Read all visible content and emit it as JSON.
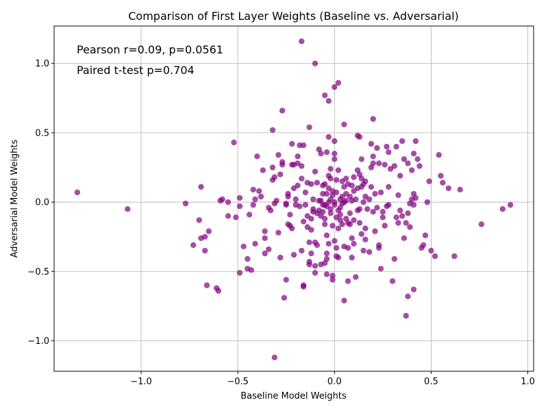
{
  "chart_data": {
    "type": "scatter",
    "title": "Comparison of First Layer Weights (Baseline vs. Adversarial)",
    "xlabel": "Baseline Model Weights",
    "ylabel": "Adversarial Model Weights",
    "xlim": [
      -1.45,
      1.03
    ],
    "ylim": [
      -1.22,
      1.27
    ],
    "x_ticks": [
      -1.0,
      -0.5,
      0.0,
      0.5,
      1.0
    ],
    "x_tick_labels": [
      "−1.0",
      "−0.5",
      "0.0",
      "0.5",
      "1.0"
    ],
    "y_ticks": [
      -1.0,
      -0.5,
      0.0,
      0.5,
      1.0
    ],
    "y_tick_labels": [
      "−1.0",
      "−0.5",
      "0.0",
      "0.5",
      "1.0"
    ],
    "grid": true,
    "marker_color": "#800080",
    "marker_alpha": 0.7,
    "annotations": [
      "Pearson r=0.09, p=0.0561",
      "Paired t-test p=0.704"
    ],
    "series": [
      {
        "points": [
          [
            -1.33,
            0.07
          ],
          [
            -1.07,
            -0.05
          ],
          [
            -0.77,
            -0.01
          ],
          [
            -0.73,
            -0.31
          ],
          [
            -0.7,
            -0.13
          ],
          [
            -0.69,
            0.11
          ],
          [
            -0.69,
            -0.26
          ],
          [
            -0.67,
            -0.25
          ],
          [
            -0.67,
            -0.35
          ],
          [
            -0.66,
            -0.6
          ],
          [
            -0.65,
            -0.21
          ],
          [
            -0.61,
            -0.62
          ],
          [
            -0.6,
            -0.64
          ],
          [
            -0.59,
            0.01
          ],
          [
            -0.58,
            0.02
          ],
          [
            -0.55,
            -0.1
          ],
          [
            -0.55,
            0.0
          ],
          [
            -0.52,
            0.43
          ],
          [
            -0.51,
            -0.11
          ],
          [
            -0.49,
            -0.51
          ],
          [
            -0.49,
            -0.03
          ],
          [
            -0.49,
            0.03
          ],
          [
            -0.47,
            -0.32
          ],
          [
            -0.45,
            -0.41
          ],
          [
            -0.45,
            -0.48
          ],
          [
            -0.44,
            -0.09
          ],
          [
            -0.43,
            -0.49
          ],
          [
            -0.42,
            -0.02
          ],
          [
            -0.42,
            0.09
          ],
          [
            -0.41,
            -0.3
          ],
          [
            -0.41,
            0.02
          ],
          [
            -0.4,
            0.33
          ],
          [
            -0.39,
            0.08
          ],
          [
            -0.38,
            0.04
          ],
          [
            -0.37,
            0.23
          ],
          [
            -0.36,
            -0.21
          ],
          [
            -0.36,
            -0.26
          ],
          [
            -0.36,
            -0.37
          ],
          [
            -0.34,
            -0.34
          ],
          [
            -0.34,
            -0.04
          ],
          [
            -0.33,
            -0.06
          ],
          [
            -0.32,
            0.16
          ],
          [
            -0.32,
            0.52
          ],
          [
            -0.32,
            0.25
          ],
          [
            -0.31,
            0.18
          ],
          [
            -0.31,
            -0.01
          ],
          [
            -0.31,
            -1.12
          ],
          [
            -0.3,
            0.01
          ],
          [
            -0.29,
            -0.22
          ],
          [
            -0.29,
            0.34
          ],
          [
            -0.28,
            0.2
          ],
          [
            -0.28,
            -0.4
          ],
          [
            -0.27,
            0.66
          ],
          [
            -0.27,
            0.29
          ],
          [
            -0.27,
            0.27
          ],
          [
            -0.26,
            -0.69
          ],
          [
            -0.25,
            -0.56
          ],
          [
            -0.25,
            -0.02
          ],
          [
            -0.25,
            -0.01
          ],
          [
            -0.24,
            0.04
          ],
          [
            -0.24,
            0.06
          ],
          [
            -0.24,
            -0.16
          ],
          [
            -0.23,
            -0.17
          ],
          [
            -0.23,
            -0.09
          ],
          [
            -0.22,
            -0.19
          ],
          [
            -0.22,
            0.42
          ],
          [
            -0.22,
            0.27
          ],
          [
            -0.21,
            0.27
          ],
          [
            -0.21,
            -0.38
          ],
          [
            -0.21,
            0.1
          ],
          [
            -0.2,
            0.02
          ],
          [
            -0.2,
            -0.02
          ],
          [
            -0.19,
            0.33
          ],
          [
            -0.19,
            0.12
          ],
          [
            -0.19,
            0.28
          ],
          [
            -0.18,
            -0.03
          ],
          [
            -0.18,
            0.41
          ],
          [
            -0.17,
            0.26
          ],
          [
            -0.17,
            -0.35
          ],
          [
            -0.17,
            1.16
          ],
          [
            -0.17,
            0.17
          ],
          [
            -0.16,
            0.41
          ],
          [
            -0.16,
            -0.6
          ],
          [
            -0.16,
            -0.61
          ],
          [
            -0.16,
            -0.14
          ],
          [
            -0.15,
            -0.02
          ],
          [
            -0.15,
            0.07
          ],
          [
            -0.14,
            -0.18
          ],
          [
            -0.14,
            0.14
          ],
          [
            -0.14,
            -0.1
          ],
          [
            -0.13,
            0.54
          ],
          [
            -0.13,
            -0.29
          ],
          [
            -0.13,
            -0.45
          ],
          [
            -0.13,
            -0.43
          ],
          [
            -0.12,
            -0.12
          ],
          [
            -0.12,
            0.13
          ],
          [
            -0.12,
            -0.2
          ],
          [
            -0.12,
            -0.37
          ],
          [
            -0.11,
            -0.07
          ],
          [
            -0.11,
            -0.05
          ],
          [
            -0.11,
            0.02
          ],
          [
            -0.1,
            1.0
          ],
          [
            -0.1,
            -0.29
          ],
          [
            -0.1,
            -0.51
          ],
          [
            -0.1,
            -0.46
          ],
          [
            -0.1,
            0.22
          ],
          [
            -0.09,
            -0.31
          ],
          [
            -0.09,
            -0.08
          ],
          [
            -0.09,
            0.14
          ],
          [
            -0.08,
            -0.06
          ],
          [
            -0.08,
            0.01
          ],
          [
            -0.08,
            0.38
          ],
          [
            -0.07,
            -0.1
          ],
          [
            -0.07,
            -0.45
          ],
          [
            -0.07,
            0.35
          ],
          [
            -0.07,
            0.01
          ],
          [
            -0.06,
            0.06
          ],
          [
            -0.06,
            -0.02
          ],
          [
            -0.06,
            0.12
          ],
          [
            -0.06,
            -0.07
          ],
          [
            -0.05,
            0.77
          ],
          [
            -0.05,
            -0.44
          ],
          [
            -0.05,
            -0.02
          ],
          [
            -0.05,
            -0.16
          ],
          [
            -0.05,
            0.13
          ],
          [
            -0.05,
            -0.12
          ],
          [
            -0.04,
            -0.24
          ],
          [
            -0.04,
            -0.37
          ],
          [
            -0.04,
            -0.41
          ],
          [
            -0.04,
            -0.52
          ],
          [
            -0.04,
            0.36
          ],
          [
            -0.04,
            0.06
          ],
          [
            -0.04,
            -0.03
          ],
          [
            -0.03,
            0.73
          ],
          [
            -0.03,
            0.19
          ],
          [
            -0.03,
            0.47
          ],
          [
            -0.03,
            -0.3
          ],
          [
            -0.03,
            0.0
          ],
          [
            -0.03,
            0.1
          ],
          [
            -0.02,
            -0.05
          ],
          [
            -0.02,
            0.24
          ],
          [
            -0.02,
            0.17
          ],
          [
            -0.02,
            -0.08
          ],
          [
            -0.02,
            0.02
          ],
          [
            -0.01,
            -0.56
          ],
          [
            -0.01,
            -0.53
          ],
          [
            -0.01,
            0.08
          ],
          [
            -0.01,
            -0.17
          ],
          [
            -0.01,
            0.05
          ],
          [
            0.0,
            0.31
          ],
          [
            0.0,
            0.44
          ],
          [
            0.0,
            -0.28
          ],
          [
            0.0,
            0.83
          ],
          [
            0.0,
            0.35
          ],
          [
            0.0,
            0.0
          ],
          [
            0.0,
            -0.02
          ],
          [
            0.01,
            0.16
          ],
          [
            0.01,
            -0.33
          ],
          [
            0.01,
            0.07
          ],
          [
            0.01,
            -0.11
          ],
          [
            0.01,
            -0.39
          ],
          [
            0.02,
            -0.4
          ],
          [
            0.02,
            0.23
          ],
          [
            0.02,
            -0.19
          ],
          [
            0.02,
            0.86
          ],
          [
            0.02,
            -0.06
          ],
          [
            0.03,
            -0.04
          ],
          [
            0.03,
            0.02
          ],
          [
            0.03,
            -0.13
          ],
          [
            0.03,
            -0.09
          ],
          [
            0.04,
            0.15
          ],
          [
            0.04,
            0.04
          ],
          [
            0.04,
            -0.16
          ],
          [
            0.04,
            -0.01
          ],
          [
            0.05,
            0.56
          ],
          [
            0.05,
            -0.71
          ],
          [
            0.05,
            -0.32
          ],
          [
            0.05,
            0.0
          ],
          [
            0.05,
            0.11
          ],
          [
            0.06,
            0.17
          ],
          [
            0.06,
            -0.12
          ],
          [
            0.06,
            0.06
          ],
          [
            0.06,
            0.01
          ],
          [
            0.07,
            -0.33
          ],
          [
            0.07,
            -0.57
          ],
          [
            0.07,
            0.13
          ],
          [
            0.07,
            -0.15
          ],
          [
            0.08,
            -0.08
          ],
          [
            0.08,
            0.04
          ],
          [
            0.08,
            -0.16
          ],
          [
            0.09,
            -0.4
          ],
          [
            0.09,
            0.12
          ],
          [
            0.09,
            0.01
          ],
          [
            0.09,
            -0.26
          ],
          [
            0.1,
            -0.13
          ],
          [
            0.1,
            0.08
          ],
          [
            0.1,
            -0.3
          ],
          [
            0.1,
            0.18
          ],
          [
            0.11,
            -0.54
          ],
          [
            0.11,
            0.02
          ],
          [
            0.12,
            0.48
          ],
          [
            0.12,
            -0.06
          ],
          [
            0.12,
            0.23
          ],
          [
            0.12,
            0.1
          ],
          [
            0.13,
            0.47
          ],
          [
            0.13,
            -0.15
          ],
          [
            0.13,
            0.2
          ],
          [
            0.13,
            -0.05
          ],
          [
            0.14,
            0.31
          ],
          [
            0.14,
            -0.23
          ],
          [
            0.14,
            0.11
          ],
          [
            0.14,
            0.17
          ],
          [
            0.15,
            -0.35
          ],
          [
            0.15,
            0.0
          ],
          [
            0.15,
            0.13
          ],
          [
            0.16,
            -0.19
          ],
          [
            0.16,
            0.04
          ],
          [
            0.16,
            -0.27
          ],
          [
            0.16,
            0.15
          ],
          [
            0.17,
            -0.05
          ],
          [
            0.18,
            0.02
          ],
          [
            0.18,
            -0.36
          ],
          [
            0.19,
            0.42
          ],
          [
            0.19,
            0.25
          ],
          [
            0.19,
            0.11
          ],
          [
            0.2,
            -0.07
          ],
          [
            0.2,
            0.6
          ],
          [
            0.2,
            0.28
          ],
          [
            0.2,
            0.33
          ],
          [
            0.21,
            -0.21
          ],
          [
            0.21,
            0.06
          ],
          [
            0.22,
            0.39
          ],
          [
            0.22,
            -0.04
          ],
          [
            0.23,
            -0.31
          ],
          [
            0.23,
            -0.33
          ],
          [
            0.23,
            0.28
          ],
          [
            0.24,
            0.07
          ],
          [
            0.24,
            -0.48
          ],
          [
            0.25,
            -0.11
          ],
          [
            0.25,
            -0.07
          ],
          [
            0.26,
            -0.17
          ],
          [
            0.26,
            0.27
          ],
          [
            0.27,
            0.4
          ],
          [
            0.27,
            -0.03
          ],
          [
            0.28,
            -0.02
          ],
          [
            0.28,
            0.11
          ],
          [
            0.28,
            0.36
          ],
          [
            0.29,
            0.24
          ],
          [
            0.3,
            -0.57
          ],
          [
            0.31,
            0.26
          ],
          [
            0.31,
            -0.41
          ],
          [
            0.32,
            0.4
          ],
          [
            0.32,
            -0.11
          ],
          [
            0.33,
            0.05
          ],
          [
            0.33,
            -0.15
          ],
          [
            0.34,
            0.19
          ],
          [
            0.34,
            -0.06
          ],
          [
            0.35,
            0.44
          ],
          [
            0.35,
            -0.1
          ],
          [
            0.36,
            -0.26
          ],
          [
            0.36,
            0.31
          ],
          [
            0.37,
            -0.82
          ],
          [
            0.37,
            -0.15
          ],
          [
            0.38,
            -0.68
          ],
          [
            0.38,
            0.28
          ],
          [
            0.38,
            -0.08
          ],
          [
            0.39,
            -0.01
          ],
          [
            0.39,
            -0.18
          ],
          [
            0.4,
            0.23
          ],
          [
            0.4,
            0.02
          ],
          [
            0.41,
            -0.02
          ],
          [
            0.41,
            0.35
          ],
          [
            0.41,
            -0.63
          ],
          [
            0.41,
            0.06
          ],
          [
            0.42,
            0.03
          ],
          [
            0.42,
            0.44
          ],
          [
            0.43,
            0.31
          ],
          [
            0.44,
            0.26
          ],
          [
            0.45,
            -0.33
          ],
          [
            0.46,
            -0.31
          ],
          [
            0.47,
            -0.24
          ],
          [
            0.48,
            0.0
          ],
          [
            0.49,
            0.15
          ],
          [
            0.5,
            -0.35
          ],
          [
            0.52,
            -0.39
          ],
          [
            0.54,
            0.34
          ],
          [
            0.55,
            0.19
          ],
          [
            0.56,
            0.14
          ],
          [
            0.59,
            0.1
          ],
          [
            0.62,
            -0.39
          ],
          [
            0.65,
            0.09
          ],
          [
            0.76,
            -0.16
          ],
          [
            0.87,
            -0.05
          ],
          [
            0.91,
            -0.02
          ]
        ]
      }
    ]
  }
}
